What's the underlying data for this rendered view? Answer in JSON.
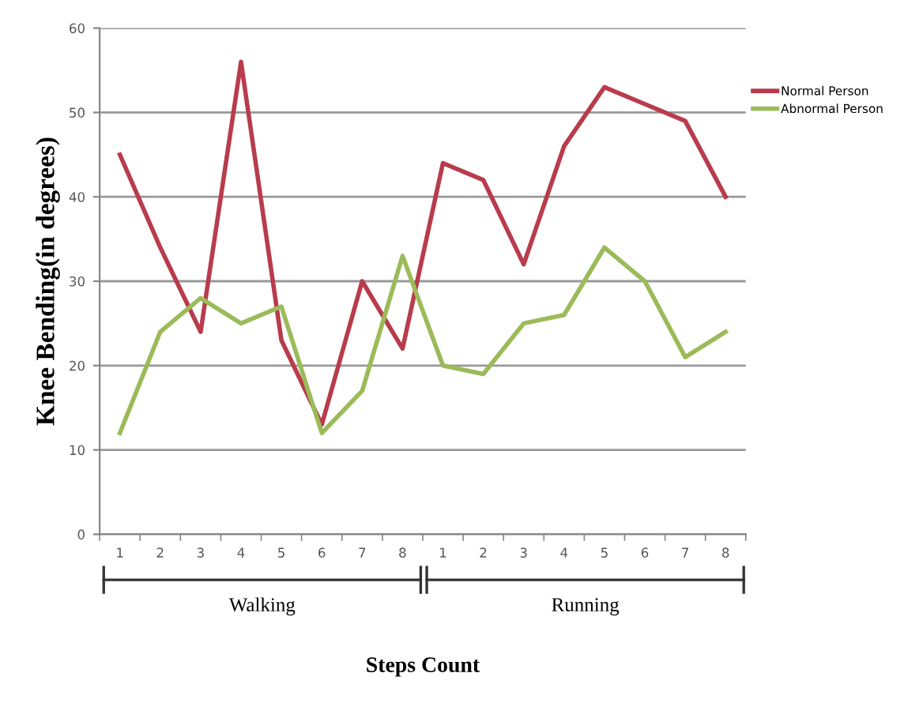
{
  "chart_data": {
    "type": "line",
    "xlabel": "Steps Count",
    "ylabel": "Knee Bending(in degrees)",
    "categories": [
      "1",
      "2",
      "3",
      "4",
      "5",
      "6",
      "7",
      "8",
      "1",
      "2",
      "3",
      "4",
      "5",
      "6",
      "7",
      "8"
    ],
    "series": [
      {
        "name": "Normal Person",
        "color": "#b83c4c",
        "values": [
          45,
          34,
          24,
          56,
          23,
          13,
          30,
          22,
          44,
          42,
          32,
          46,
          53,
          51,
          49,
          40
        ]
      },
      {
        "name": "Abnormal Person",
        "color": "#9bbb59",
        "values": [
          12,
          24,
          28,
          25,
          27,
          12,
          17,
          33,
          20,
          19,
          25,
          26,
          34,
          30,
          21,
          24
        ]
      }
    ],
    "ylim": [
      0,
      60
    ],
    "yticks": [
      0,
      10,
      20,
      30,
      40,
      50,
      60
    ],
    "grid": "y",
    "legend": "top right",
    "marker": "none",
    "line_style": "solid",
    "annotations": [
      "Walking",
      "Running"
    ]
  }
}
